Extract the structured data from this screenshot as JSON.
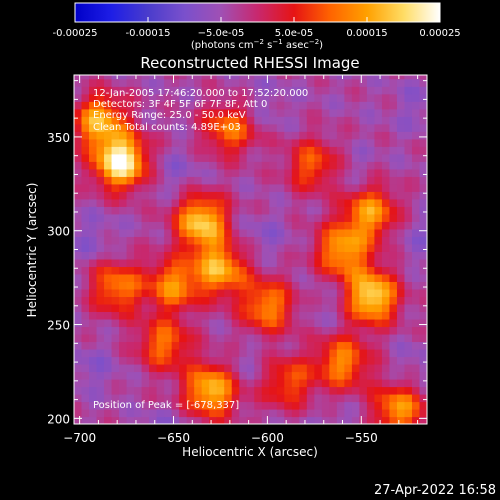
{
  "chart_data": {
    "type": "heatmap",
    "title": "Reconstructed RHESSI Image",
    "xlabel": "Heliocentric X (arcsec)",
    "ylabel": "Heliocentric Y (arcsec)",
    "xlim": [
      -703,
      -515
    ],
    "ylim": [
      197,
      383
    ],
    "x_ticks": [
      -700,
      -650,
      -600,
      -550
    ],
    "x_tick_labels": [
      "−700",
      "−650",
      "−600",
      "−550"
    ],
    "y_ticks": [
      200,
      250,
      300,
      350
    ],
    "y_tick_labels": [
      "200",
      "250",
      "300",
      "350"
    ],
    "colorbar": {
      "min": -0.00025,
      "max": 0.00025,
      "ticks": [
        -0.00025,
        -0.00015,
        -5e-05,
        5e-05,
        0.00015,
        0.00025
      ],
      "tick_labels": [
        "-0.00025",
        "-0.00015",
        "−5.0e-05",
        "5.0e-05",
        "0.00015",
        "0.00025"
      ],
      "units_parts": [
        "(photons cm",
        "−2",
        " s",
        "−1",
        " asec",
        "−2",
        ")"
      ],
      "colors": [
        "#0000c8",
        "#1e1ee6",
        "#4a3ccc",
        "#7a50cc",
        "#a050b4",
        "#c8286e",
        "#e61414",
        "#ff6400",
        "#ffa000",
        "#ffdc64",
        "#ffffff"
      ]
    },
    "annotations": [
      "12-Jan-2005 17:46:20.000 to 17:52:20.000",
      "Detectors: 3F 4F 5F 6F 7F 8F, Att 0",
      "Energy Range: 25.0 - 50.0 keV",
      "Clean     Total counts: 4.89E+03"
    ],
    "peak_label": "Position of Peak = [-678,337]",
    "peak": [
      -678,
      337
    ],
    "sources": [
      {
        "x": -678,
        "y": 337,
        "value": 0.00025
      },
      {
        "x": -690,
        "y": 360,
        "value": 0.00018
      },
      {
        "x": -635,
        "y": 305,
        "value": 0.00019
      },
      {
        "x": -625,
        "y": 280,
        "value": 0.00016
      },
      {
        "x": -650,
        "y": 270,
        "value": 0.00015
      },
      {
        "x": -680,
        "y": 270,
        "value": 0.00012
      },
      {
        "x": -545,
        "y": 265,
        "value": 0.00022
      },
      {
        "x": -560,
        "y": 290,
        "value": 0.00015
      },
      {
        "x": -545,
        "y": 310,
        "value": 0.00014
      },
      {
        "x": -630,
        "y": 215,
        "value": 0.00018
      },
      {
        "x": -600,
        "y": 260,
        "value": 0.00013
      },
      {
        "x": -560,
        "y": 230,
        "value": 0.00013
      },
      {
        "x": -530,
        "y": 205,
        "value": 0.00014
      },
      {
        "x": -620,
        "y": 355,
        "value": 0.00012
      },
      {
        "x": -655,
        "y": 240,
        "value": 0.00011
      },
      {
        "x": -590,
        "y": 220,
        "value": 0.0001
      },
      {
        "x": -575,
        "y": 335,
        "value": 0.00011
      }
    ],
    "background_level": -4e-05
  },
  "timestamp": "27-Apr-2022 16:58"
}
